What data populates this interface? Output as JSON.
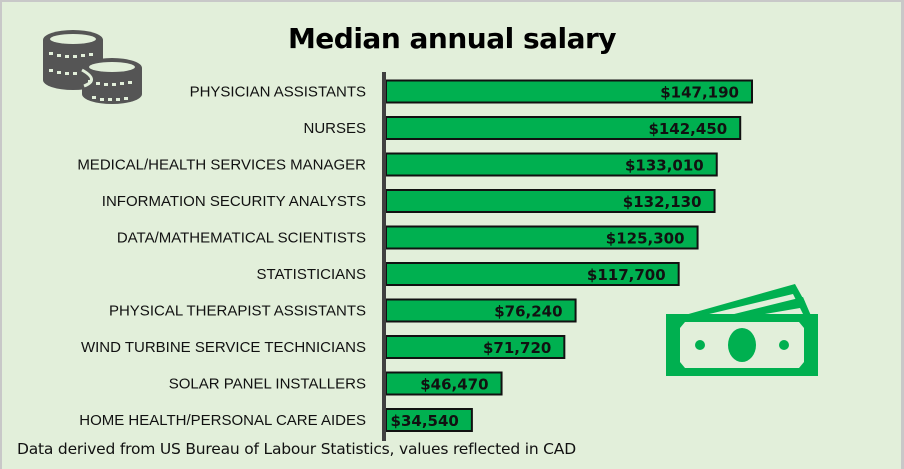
{
  "chart_data": {
    "type": "bar",
    "orientation": "horizontal",
    "title": "Median annual salary",
    "xlabel": "",
    "ylabel": "",
    "currency": "CAD",
    "categories": [
      "PHYSICIAN ASSISTANTS",
      "NURSES",
      "MEDICAL/HEALTH SERVICES MANAGER",
      "INFORMATION SECURITY ANALYSTS",
      "DATA/MATHEMATICAL SCIENTISTS",
      "STATISTICIANS",
      "PHYSICAL THERAPIST ASSISTANTS",
      "WIND TURBINE SERVICE TECHNICIANS",
      "SOLAR PANEL INSTALLERS",
      "HOME HEALTH/PERSONAL CARE AIDES"
    ],
    "values": [
      147190,
      142450,
      133010,
      132130,
      125300,
      117700,
      76240,
      71720,
      46470,
      34540
    ],
    "data_labels": [
      "$147,190",
      "$142,450",
      "$133,010",
      "$132,130",
      "$125,300",
      "$117,700",
      "$76,240",
      "$71,720",
      "$46,470",
      "$34,540"
    ],
    "xlim": [
      0,
      160000
    ],
    "grid": false,
    "legend": "none",
    "colors": {
      "bar": "#00b050",
      "bar_border": "#111111",
      "axis": "#404040",
      "background": "#e2efda"
    }
  },
  "footnote": "Data derived from US Bureau of Labour Statistics, values reflected in CAD",
  "icons": {
    "top_left": "coins-icon",
    "right": "money-bills-icon"
  },
  "colors": {
    "coins_icon": "#555555",
    "money_icon": "#00b050"
  }
}
